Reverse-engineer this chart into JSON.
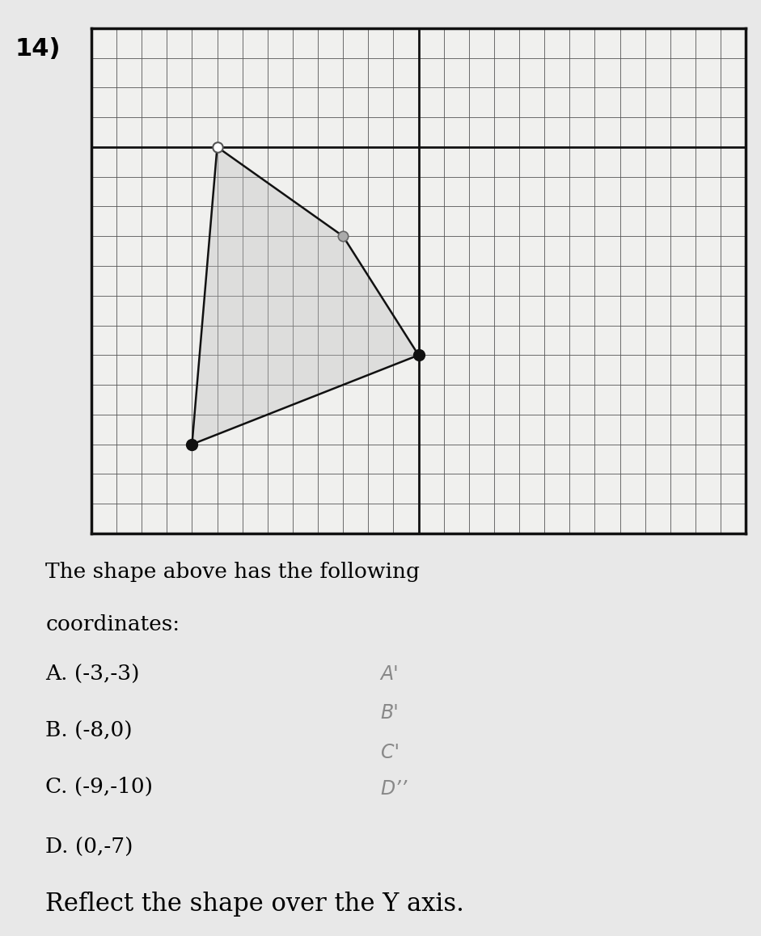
{
  "title_number": "14)",
  "paper_color": "#e8e8e8",
  "grid_bg_color": "#f0f0ee",
  "grid_line_color": "#555555",
  "axis_line_color": "#111111",
  "border_color": "#111111",
  "shape_line_color": "#111111",
  "fill_color": "#bbbbbb",
  "fill_alpha": 0.35,
  "point_B_color": "#cccccc",
  "point_A_color": "#aaaaaa",
  "point_CD_color": "#111111",
  "point_size": 9,
  "xlim": [
    -13,
    13
  ],
  "ylim": [
    -13,
    4
  ],
  "original_points": [
    [
      -3,
      -3
    ],
    [
      -8,
      0
    ],
    [
      -9,
      -10
    ],
    [
      0,
      -7
    ]
  ],
  "desc_line1": "The shape above has the following",
  "desc_line2": "coordinates:",
  "coord_A": "A. (-3,-3)",
  "coord_B": "B. (-8,0)",
  "coord_C": "C. (-9,-10)",
  "coord_D": "D. (0,-7)",
  "reflected_A": "A'",
  "reflected_B": "B'",
  "reflected_C": "C'",
  "reflected_D": "D’’",
  "instruction_text": "Reflect the shape over the Y axis.",
  "font_size_number": 22,
  "font_size_desc": 19,
  "font_size_coords": 19,
  "font_size_instruction": 22
}
